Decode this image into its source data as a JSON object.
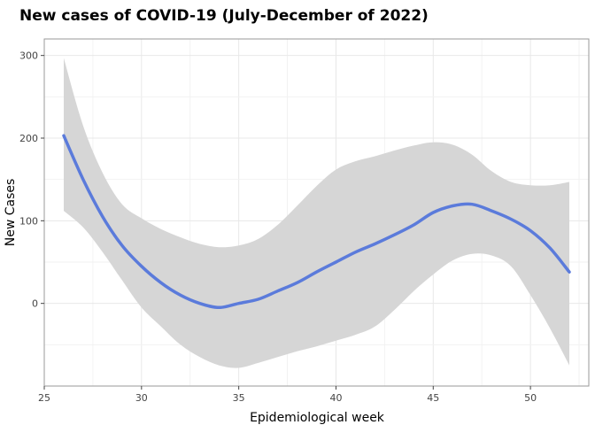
{
  "chart_data": {
    "type": "line",
    "title": "New cases of COVID-19 (July-December of 2022)",
    "xlabel": "Epidemiological week",
    "ylabel": "New Cases",
    "xlim": [
      25,
      53
    ],
    "ylim": [
      -100,
      320
    ],
    "xticks": [
      25,
      30,
      35,
      40,
      45,
      50
    ],
    "yticks": [
      0,
      100,
      200,
      300
    ],
    "grid": true,
    "legend": "none",
    "colors": {
      "line": "#5B7BDB",
      "band": "#D6D6D6",
      "grid": "#E8E8E8",
      "frame": "#9A9A9A"
    },
    "series": [
      {
        "x": [
          26,
          27,
          28,
          29,
          30,
          31,
          32,
          33,
          34,
          35,
          36,
          37,
          38,
          39,
          40,
          41,
          42,
          43,
          44,
          45,
          46,
          47,
          48,
          49,
          50,
          51,
          52
        ],
        "y": [
          203,
          150,
          105,
          70,
          45,
          25,
          10,
          0,
          -5,
          0,
          5,
          15,
          25,
          38,
          50,
          62,
          72,
          83,
          95,
          110,
          118,
          120,
          112,
          102,
          88,
          67,
          38
        ],
        "lower": [
          112,
          92,
          62,
          28,
          -5,
          -28,
          -50,
          -65,
          -75,
          -78,
          -72,
          -65,
          -58,
          -52,
          -45,
          -38,
          -28,
          -8,
          15,
          35,
          52,
          60,
          58,
          45,
          10,
          -30,
          -75
        ],
        "upper": [
          297,
          215,
          158,
          120,
          103,
          90,
          80,
          72,
          68,
          70,
          78,
          95,
          118,
          142,
          162,
          172,
          178,
          185,
          191,
          195,
          192,
          180,
          160,
          147,
          143,
          143,
          147
        ]
      }
    ]
  }
}
